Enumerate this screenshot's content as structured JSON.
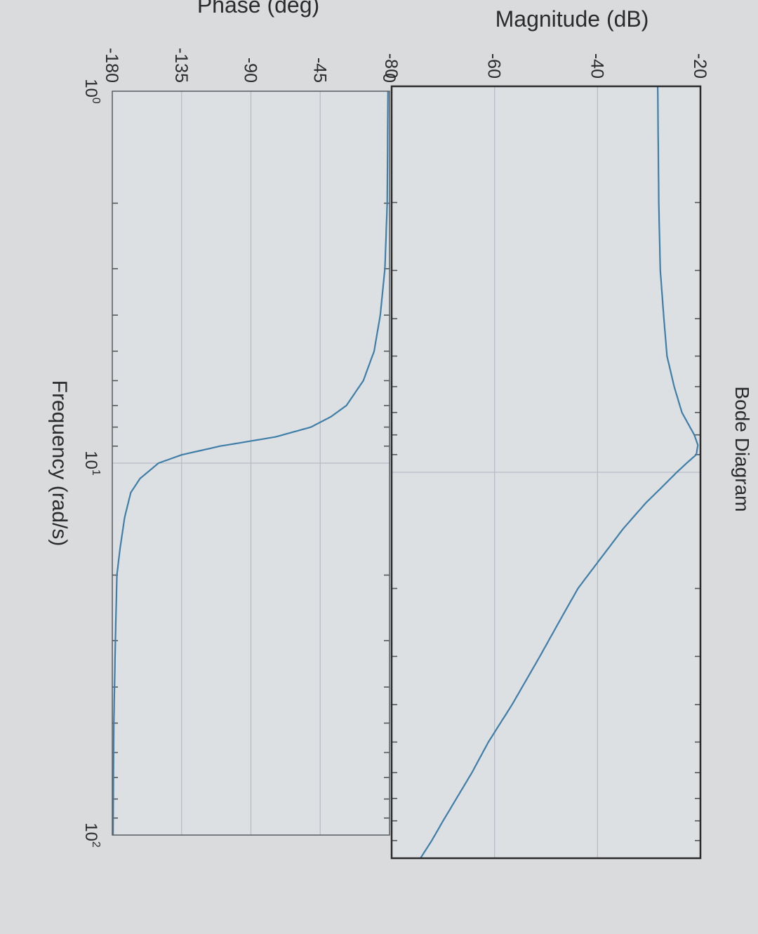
{
  "chart_data": [
    {
      "type": "line",
      "title": "Bode Diagram",
      "xlabel": "Frequency  (rad/s)",
      "ylabel": "Magnitude (dB)",
      "x_scale": "log",
      "xlim": [
        1,
        100
      ],
      "ylim": [
        -80,
        -20
      ],
      "yticks": [
        "-20",
        "-40",
        "-60",
        "-80"
      ],
      "ytick_values": [
        -20,
        -40,
        -60,
        -80
      ],
      "grid": true,
      "series": [
        {
          "x": [
            1,
            2,
            3,
            4,
            5,
            6,
            7,
            8,
            8.5,
            9,
            9.5,
            10,
            11,
            12,
            14,
            17,
            20,
            25,
            30,
            40,
            50,
            60,
            70,
            80,
            90,
            100
          ],
          "y": [
            -28.3,
            -28.1,
            -27.8,
            -27.1,
            -26.5,
            -25.1,
            -23.6,
            -21.2,
            -20.5,
            -20.8,
            -22.8,
            -24.6,
            -27.7,
            -30.6,
            -35.0,
            -39.8,
            -43.8,
            -47.9,
            -51.2,
            -56.6,
            -61.2,
            -64.4,
            -67.4,
            -70.0,
            -72.2,
            -74.4
          ]
        }
      ]
    },
    {
      "type": "line",
      "xlabel": "Frequency  (rad/s)",
      "ylabel": "Phase (deg)",
      "x_scale": "log",
      "xlim": [
        1,
        100
      ],
      "ylim": [
        -180,
        0
      ],
      "yticks": [
        "0",
        "-45",
        "-90",
        "-135",
        "-180"
      ],
      "ytick_values": [
        0,
        -45,
        -90,
        -135,
        -180
      ],
      "xticks": [
        {
          "base": "10",
          "exp": "0"
        },
        {
          "base": "10",
          "exp": "1"
        },
        {
          "base": "10",
          "exp": "2"
        }
      ],
      "xtick_values": [
        1,
        10,
        100
      ],
      "grid": true,
      "series": [
        {
          "x": [
            1,
            2,
            3,
            4,
            5,
            6,
            7,
            7.5,
            8,
            8.5,
            9,
            9.5,
            10,
            11,
            12,
            14,
            17,
            20,
            30,
            50,
            100
          ],
          "y": [
            -1,
            -1.5,
            -3,
            -6,
            -10,
            -17,
            -28,
            -38,
            -51,
            -74,
            -110,
            -135,
            -150,
            -162,
            -168,
            -172,
            -175,
            -177,
            -178,
            -179,
            -179.5
          ]
        }
      ]
    }
  ],
  "colors": {
    "line": "#3f7ea8",
    "frame": "#2a2a2a",
    "grid": "#b8bcc4",
    "axes_bg": "#dde0e3"
  }
}
